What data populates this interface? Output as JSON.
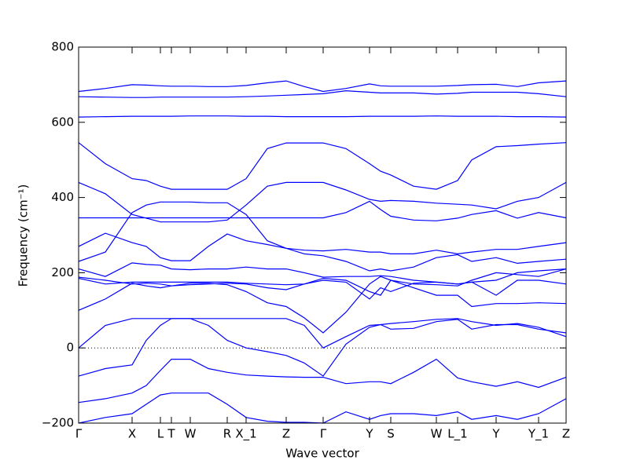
{
  "chart_data": {
    "type": "line",
    "xlabel": "Wave vector",
    "ylabel": "Frequency (cm⁻¹)",
    "xlim": [
      0,
      620
    ],
    "ylim": [
      -200,
      800
    ],
    "yticks": [
      {
        "value": -200,
        "label": "−200"
      },
      0,
      200,
      400,
      600,
      800
    ],
    "xticks": [
      {
        "value": 0,
        "label": "Γ"
      },
      {
        "value": 68,
        "label": "X"
      },
      {
        "value": 104,
        "label": "L"
      },
      {
        "value": 118,
        "label": "T"
      },
      {
        "value": 142,
        "label": "W"
      },
      {
        "value": 189,
        "label": "R"
      },
      {
        "value": 213,
        "label": "X_1"
      },
      {
        "value": 264,
        "label": "Z"
      },
      {
        "value": 311,
        "label": "Γ"
      },
      {
        "value": 370,
        "label": "Y"
      },
      {
        "value": 397,
        "label": "S"
      },
      {
        "value": 455,
        "label": "W"
      },
      {
        "value": 482,
        "label": "L_1"
      },
      {
        "value": 531,
        "label": "Y"
      },
      {
        "value": 585,
        "label": "Y_1"
      },
      {
        "value": 620,
        "label": "Z"
      }
    ],
    "hlines": [
      0
    ],
    "x": [
      0,
      34,
      68,
      86,
      104,
      118,
      142,
      165,
      189,
      213,
      240,
      264,
      287,
      311,
      340,
      370,
      384,
      397,
      426,
      455,
      482,
      500,
      531,
      558,
      585,
      620
    ],
    "color": "#0000ff",
    "series": [
      {
        "values": [
          682,
          690,
          700,
          699,
          697,
          696,
          696,
          695,
          695,
          698,
          705,
          710,
          695,
          682,
          690,
          702,
          697,
          696,
          696,
          696,
          698,
          700,
          701,
          695,
          705,
          710
        ]
      },
      {
        "values": [
          668,
          667,
          666,
          666,
          667,
          667,
          667,
          667,
          667,
          668,
          670,
          672,
          674,
          676,
          684,
          680,
          678,
          678,
          678,
          675,
          677,
          680,
          680,
          680,
          676,
          668
        ]
      },
      {
        "values": [
          614,
          615,
          616,
          616,
          616,
          616,
          617,
          617,
          617,
          616,
          616,
          615,
          615,
          615,
          615,
          616,
          616,
          616,
          616,
          617,
          616,
          616,
          616,
          615,
          615,
          614
        ]
      },
      {
        "values": [
          546,
          490,
          450,
          445,
          430,
          422,
          422,
          422,
          422,
          450,
          530,
          545,
          545,
          545,
          530,
          490,
          470,
          460,
          430,
          422,
          445,
          500,
          535,
          538,
          542,
          546
        ]
      },
      {
        "values": [
          440,
          410,
          355,
          345,
          335,
          335,
          335,
          335,
          340,
          380,
          430,
          440,
          440,
          440,
          420,
          395,
          390,
          392,
          390,
          385,
          382,
          380,
          370,
          390,
          400,
          440
        ]
      },
      {
        "values": [
          346,
          346,
          346,
          346,
          346,
          346,
          346,
          346,
          346,
          346,
          346,
          346,
          346,
          346,
          360,
          390,
          368,
          350,
          340,
          338,
          345,
          355,
          365,
          345,
          360,
          346
        ]
      },
      {
        "values": [
          270,
          305,
          280,
          270,
          240,
          232,
          232,
          270,
          303,
          285,
          275,
          265,
          250,
          245,
          230,
          205,
          210,
          205,
          215,
          240,
          248,
          230,
          240,
          225,
          230,
          236
        ]
      },
      {
        "values": [
          230,
          255,
          360,
          380,
          388,
          388,
          388,
          386,
          386,
          355,
          285,
          265,
          260,
          258,
          262,
          255,
          255,
          250,
          250,
          260,
          250,
          255,
          262,
          262,
          270,
          280
        ]
      },
      {
        "values": [
          210,
          190,
          226,
          222,
          220,
          210,
          208,
          210,
          210,
          215,
          210,
          210,
          200,
          188,
          190,
          190,
          192,
          190,
          180,
          175,
          170,
          175,
          180,
          200,
          205,
          210
        ]
      },
      {
        "values": [
          188,
          180,
          170,
          172,
          170,
          165,
          168,
          170,
          172,
          170,
          160,
          155,
          170,
          185,
          180,
          150,
          140,
          180,
          170,
          168,
          165,
          180,
          200,
          195,
          190,
          210
        ]
      },
      {
        "values": [
          185,
          170,
          175,
          175,
          175,
          175,
          175,
          175,
          175,
          172,
          170,
          168,
          170,
          180,
          175,
          130,
          160,
          150,
          172,
          175,
          170,
          175,
          140,
          180,
          180,
          170
        ]
      },
      {
        "values": [
          100,
          130,
          172,
          165,
          160,
          165,
          172,
          172,
          168,
          150,
          120,
          110,
          80,
          40,
          95,
          170,
          190,
          180,
          160,
          140,
          140,
          110,
          118,
          118,
          120,
          118
        ]
      },
      {
        "values": [
          0,
          60,
          78,
          78,
          78,
          78,
          78,
          78,
          78,
          78,
          78,
          78,
          60,
          0,
          30,
          60,
          62,
          65,
          70,
          76,
          78,
          70,
          60,
          65,
          55,
          30
        ]
      },
      {
        "values": [
          -75,
          -55,
          -45,
          20,
          60,
          78,
          78,
          60,
          20,
          0,
          -10,
          -20,
          -40,
          -75,
          10,
          55,
          62,
          50,
          52,
          70,
          76,
          50,
          62,
          62,
          50,
          40
        ]
      },
      {
        "values": [
          -145,
          -135,
          -120,
          -100,
          -60,
          -30,
          -30,
          -55,
          -65,
          -72,
          -75,
          -77,
          -78,
          -78,
          -95,
          -90,
          -90,
          -95,
          -65,
          -30,
          -80,
          -90,
          -102,
          -90,
          -105,
          -78
        ]
      },
      {
        "values": [
          -200,
          -185,
          -175,
          -150,
          -125,
          -120,
          -120,
          -120,
          -150,
          -185,
          -195,
          -198,
          -198,
          -200,
          -170,
          -190,
          -180,
          -175,
          -175,
          -180,
          -170,
          -190,
          -180,
          -190,
          -175,
          -135
        ]
      }
    ]
  }
}
